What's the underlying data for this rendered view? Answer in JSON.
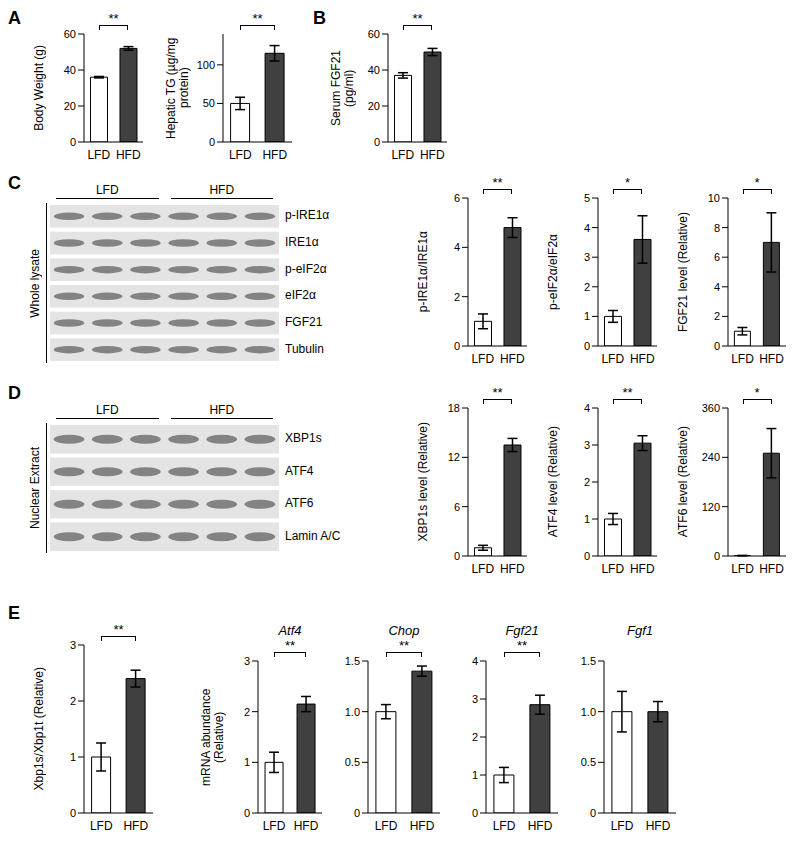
{
  "panel_labels": [
    "A",
    "B",
    "C",
    "D",
    "E"
  ],
  "blots": [
    {
      "side_label": "Whole lysate",
      "groups": [
        "LFD",
        "HFD"
      ],
      "rows": [
        "p-IRE1α",
        "IRE1α",
        "p-eIF2α",
        "eIF2α",
        "FGF21",
        "Tubulin"
      ]
    },
    {
      "side_label": "Nuclear Extract",
      "groups": [
        "LFD",
        "HFD"
      ],
      "rows": [
        "XBP1s",
        "ATF4",
        "ATF6",
        "Lamin A/C"
      ]
    }
  ],
  "chart_data": [
    {
      "type": "bar",
      "ylabel": "Body Weight (g)",
      "categories": [
        "LFD",
        "HFD"
      ],
      "values": [
        36,
        52
      ],
      "errors": [
        0.4,
        1
      ],
      "colors": [
        "#ffffff",
        "#404040"
      ],
      "ylim": [
        0,
        60
      ],
      "yticks": [
        0,
        20,
        40,
        60
      ],
      "annotation": "**"
    },
    {
      "type": "bar",
      "ylabel": "Hepatic TG (µg/mg protein)",
      "categories": [
        "LFD",
        "HFD"
      ],
      "values": [
        50,
        115
      ],
      "errors": [
        8,
        10
      ],
      "colors": [
        "#ffffff",
        "#404040"
      ],
      "ylim": [
        0,
        140
      ],
      "yticks": [
        0,
        50,
        100
      ],
      "annotation": "**"
    },
    {
      "type": "bar",
      "ylabel": "Serum FGF21 (pg/ml)",
      "categories": [
        "LFD",
        "HFD"
      ],
      "values": [
        37,
        50
      ],
      "errors": [
        1.5,
        2
      ],
      "colors": [
        "#ffffff",
        "#404040"
      ],
      "ylim": [
        0,
        60
      ],
      "yticks": [
        0,
        20,
        40,
        60
      ],
      "annotation": "**"
    },
    {
      "type": "bar",
      "ylabel": "p-IRE1α/IRE1α",
      "categories": [
        "LFD",
        "HFD"
      ],
      "values": [
        1,
        4.8
      ],
      "errors": [
        0.3,
        0.4
      ],
      "colors": [
        "#ffffff",
        "#404040"
      ],
      "ylim": [
        0,
        6
      ],
      "yticks": [
        0,
        2,
        4,
        6
      ],
      "annotation": "**"
    },
    {
      "type": "bar",
      "ylabel": "p-eIF2α/eIF2α",
      "categories": [
        "LFD",
        "HFD"
      ],
      "values": [
        1,
        3.6
      ],
      "errors": [
        0.2,
        0.8
      ],
      "colors": [
        "#ffffff",
        "#404040"
      ],
      "ylim": [
        0,
        5
      ],
      "yticks": [
        0,
        1,
        2,
        3,
        4,
        5
      ],
      "annotation": "*"
    },
    {
      "type": "bar",
      "ylabel": "FGF21 level (Relative)",
      "categories": [
        "LFD",
        "HFD"
      ],
      "values": [
        1,
        7
      ],
      "errors": [
        0.25,
        2
      ],
      "colors": [
        "#ffffff",
        "#404040"
      ],
      "ylim": [
        0,
        10
      ],
      "yticks": [
        0,
        2,
        4,
        6,
        8,
        10
      ],
      "annotation": "*"
    },
    {
      "type": "bar",
      "ylabel": "XBP1s level (Relative)",
      "categories": [
        "LFD",
        "HFD"
      ],
      "values": [
        1,
        13.5
      ],
      "errors": [
        0.3,
        0.8
      ],
      "colors": [
        "#ffffff",
        "#404040"
      ],
      "ylim": [
        0,
        18
      ],
      "yticks": [
        0,
        6,
        12,
        18
      ],
      "annotation": "**"
    },
    {
      "type": "bar",
      "ylabel": "ATF4 level (Relative)",
      "categories": [
        "LFD",
        "HFD"
      ],
      "values": [
        1,
        3.05
      ],
      "errors": [
        0.15,
        0.2
      ],
      "colors": [
        "#ffffff",
        "#404040"
      ],
      "ylim": [
        0,
        4
      ],
      "yticks": [
        0,
        1,
        2,
        3,
        4
      ],
      "annotation": "**"
    },
    {
      "type": "bar",
      "ylabel": "ATF6 level (Relative)",
      "categories": [
        "LFD",
        "HFD"
      ],
      "values": [
        1,
        250
      ],
      "errors": [
        0.5,
        60
      ],
      "colors": [
        "#ffffff",
        "#404040"
      ],
      "ylim": [
        0,
        360
      ],
      "yticks": [
        0,
        120,
        240,
        360
      ],
      "annotation": "*"
    },
    {
      "type": "bar",
      "ylabel": "Xbp1s/Xbp1t (Relative)",
      "categories": [
        "LFD",
        "HFD"
      ],
      "values": [
        1,
        2.4
      ],
      "errors": [
        0.25,
        0.15
      ],
      "colors": [
        "#ffffff",
        "#404040"
      ],
      "ylim": [
        0,
        3
      ],
      "yticks": [
        0,
        1,
        2,
        3
      ],
      "annotation": "**"
    },
    {
      "type": "bar",
      "title": "Atf4",
      "ylabel": "mRNA abundance (Relative)",
      "categories": [
        "LFD",
        "HFD"
      ],
      "values": [
        1,
        2.15
      ],
      "errors": [
        0.2,
        0.15
      ],
      "colors": [
        "#ffffff",
        "#404040"
      ],
      "ylim": [
        0,
        3
      ],
      "yticks": [
        0,
        1,
        2,
        3
      ],
      "annotation": "**"
    },
    {
      "type": "bar",
      "title": "Chop",
      "categories": [
        "LFD",
        "HFD"
      ],
      "values": [
        1,
        1.4
      ],
      "errors": [
        0.07,
        0.05
      ],
      "colors": [
        "#ffffff",
        "#404040"
      ],
      "ylim": [
        0,
        1.5
      ],
      "yticks": [
        0,
        0.5,
        {
          "value": 1,
          "label": "1.0"
        },
        1.5
      ],
      "annotation": "**"
    },
    {
      "type": "bar",
      "title": "Fgf21",
      "categories": [
        "LFD",
        "HFD"
      ],
      "values": [
        1,
        2.85
      ],
      "errors": [
        0.2,
        0.25
      ],
      "colors": [
        "#ffffff",
        "#404040"
      ],
      "ylim": [
        0,
        4
      ],
      "yticks": [
        0,
        1,
        2,
        3,
        4
      ],
      "annotation": "**"
    },
    {
      "type": "bar",
      "title": "Fgf1",
      "categories": [
        "LFD",
        "HFD"
      ],
      "values": [
        1,
        1
      ],
      "errors": [
        0.2,
        0.1
      ],
      "colors": [
        "#ffffff",
        "#404040"
      ],
      "ylim": [
        0,
        1.5
      ],
      "yticks": [
        0,
        0.5,
        {
          "value": 1,
          "label": "1.0"
        },
        1.5
      ]
    }
  ]
}
